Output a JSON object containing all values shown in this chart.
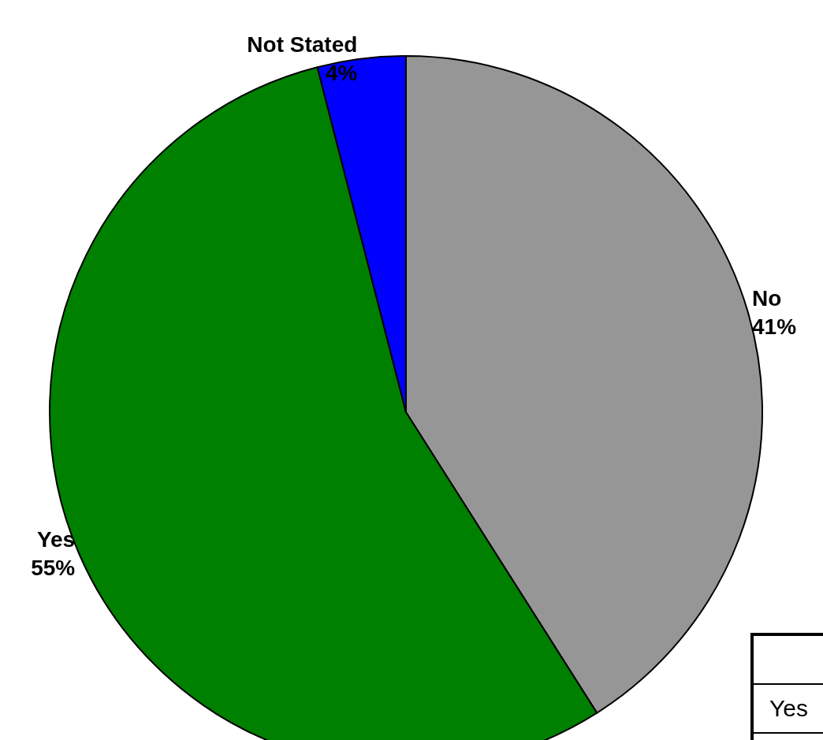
{
  "chart_data": {
    "type": "pie",
    "categories": [
      "No",
      "Yes",
      "Not Stated"
    ],
    "values": [
      41,
      55,
      4
    ],
    "value_labels": [
      "41%",
      "55%",
      "4%"
    ],
    "colors": [
      "#969696",
      "#008000",
      "#0000ff"
    ],
    "legend": "bottom right"
  }
}
